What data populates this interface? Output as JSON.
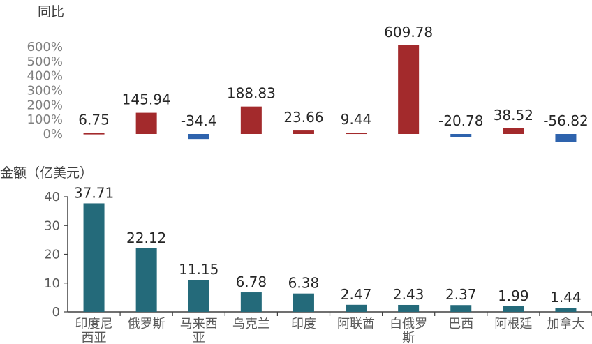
{
  "chart_data": [
    {
      "type": "bar",
      "ylabel": "同比",
      "categories": [
        "印度尼西亚",
        "俄罗斯",
        "马来西亚",
        "乌克兰",
        "印度",
        "阿联酋",
        "白俄罗斯",
        "巴西",
        "阿根廷",
        "加拿大"
      ],
      "values": [
        6.75,
        145.94,
        -34.4,
        188.83,
        23.66,
        9.44,
        609.78,
        -20.78,
        38.52,
        -56.82
      ],
      "value_labels": [
        "6.75",
        "145.94",
        "-34.4",
        "188.83",
        "23.66",
        "9.44",
        "609.78",
        "-20.78",
        "38.52",
        "-56.82"
      ],
      "y_ticks": [
        "0%",
        "100%",
        "200%",
        "300%",
        "400%",
        "500%",
        "600%"
      ],
      "ylim": [
        -60,
        620
      ],
      "colors": {
        "positive": "#a32a2c",
        "negative": "#2e63ad"
      },
      "grid": false
    },
    {
      "type": "bar",
      "ylabel": "金额（亿美元）",
      "categories": [
        "印度尼西亚",
        "俄罗斯",
        "马来西亚",
        "乌克兰",
        "印度",
        "阿联酋",
        "白俄罗斯",
        "巴西",
        "阿根廷",
        "加拿大"
      ],
      "category_labels": [
        [
          "印度尼",
          "西亚"
        ],
        [
          "俄罗斯"
        ],
        [
          "马来西",
          "亚"
        ],
        [
          "乌克兰"
        ],
        [
          "印度"
        ],
        [
          "阿联酋"
        ],
        [
          "白俄罗",
          "斯"
        ],
        [
          "巴西"
        ],
        [
          "阿根廷"
        ],
        [
          "加拿大"
        ]
      ],
      "values": [
        37.71,
        22.12,
        11.15,
        6.78,
        6.38,
        2.47,
        2.43,
        2.37,
        1.99,
        1.44
      ],
      "value_labels": [
        "37.71",
        "22.12",
        "11.15",
        "6.78",
        "6.38",
        "2.47",
        "2.43",
        "2.37",
        "1.99",
        "1.44"
      ],
      "y_ticks": [
        "0",
        "10",
        "20",
        "30",
        "40"
      ],
      "ylim": [
        0,
        40
      ],
      "colors": {
        "bar": "#246a7a",
        "axis": "#404040"
      },
      "grid": false
    }
  ]
}
